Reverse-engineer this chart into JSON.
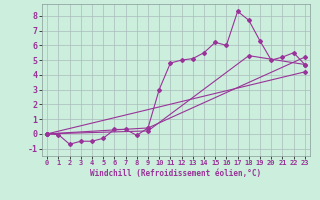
{
  "xlabel": "Windchill (Refroidissement éolien,°C)",
  "background_color": "#cceedd",
  "grid_color": "#aabbbb",
  "line_color": "#993399",
  "xlim": [
    -0.5,
    23.5
  ],
  "ylim": [
    -1.5,
    8.8
  ],
  "xticks": [
    0,
    1,
    2,
    3,
    4,
    5,
    6,
    7,
    8,
    9,
    10,
    11,
    12,
    13,
    14,
    15,
    16,
    17,
    18,
    19,
    20,
    21,
    22,
    23
  ],
  "yticks": [
    -1,
    0,
    1,
    2,
    3,
    4,
    5,
    6,
    7,
    8
  ],
  "series1_x": [
    0,
    1,
    2,
    3,
    4,
    5,
    6,
    7,
    8,
    9,
    10,
    11,
    12,
    13,
    14,
    15,
    16,
    17,
    18,
    19,
    20,
    21,
    22,
    23
  ],
  "series1_y": [
    0,
    -0.05,
    -0.7,
    -0.5,
    -0.5,
    -0.3,
    0.3,
    0.3,
    -0.1,
    0.4,
    3.0,
    4.8,
    5.0,
    5.1,
    5.5,
    6.2,
    6.0,
    8.3,
    7.7,
    6.3,
    5.0,
    5.2,
    5.5,
    4.7
  ],
  "series2_x": [
    0,
    23
  ],
  "series2_y": [
    0,
    4.2
  ],
  "series3_x": [
    0,
    9,
    23
  ],
  "series3_y": [
    0,
    0.4,
    5.2
  ],
  "series4_x": [
    0,
    9,
    18,
    23
  ],
  "series4_y": [
    0,
    0.2,
    5.3,
    4.7
  ],
  "xlabel_fontsize": 5.5,
  "tick_fontsize_x": 5.0,
  "tick_fontsize_y": 6.0,
  "marker_size": 2.0,
  "line_width": 0.8
}
